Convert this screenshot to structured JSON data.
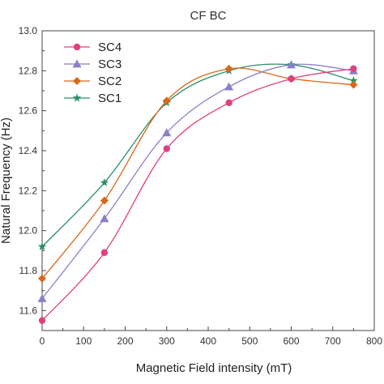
{
  "chart_data": {
    "type": "line",
    "title": "CF BC",
    "xlabel": "Magnetic Field intensity (mT)",
    "ylabel": "Natural Frequency (Hz)",
    "xlim": [
      0,
      800
    ],
    "ylim": [
      11.5,
      13.0
    ],
    "xticks": [
      "0",
      "100",
      "200",
      "300",
      "400",
      "500",
      "600",
      "700",
      "800"
    ],
    "yticks": [
      "11.6",
      "11.8",
      "12.0",
      "12.2",
      "12.4",
      "12.6",
      "12.8",
      "13.0"
    ],
    "x": [
      0,
      150,
      300,
      450,
      600,
      750
    ],
    "legend_position": "top-left",
    "grid": false,
    "series": [
      {
        "name": "SC4",
        "color": "#e0407f",
        "marker": "circle",
        "values": [
          11.55,
          11.89,
          12.41,
          12.64,
          12.76,
          12.81
        ]
      },
      {
        "name": "SC3",
        "color": "#8c7fc8",
        "marker": "triangle",
        "values": [
          11.66,
          12.06,
          12.49,
          12.72,
          12.83,
          12.8
        ]
      },
      {
        "name": "SC2",
        "color": "#d9681b",
        "marker": "diamond",
        "values": [
          11.76,
          12.15,
          12.65,
          12.81,
          12.76,
          12.73
        ]
      },
      {
        "name": "SC1",
        "color": "#2a8f6a",
        "marker": "star",
        "values": [
          11.92,
          12.24,
          12.64,
          12.8,
          12.83,
          12.75
        ]
      }
    ]
  }
}
